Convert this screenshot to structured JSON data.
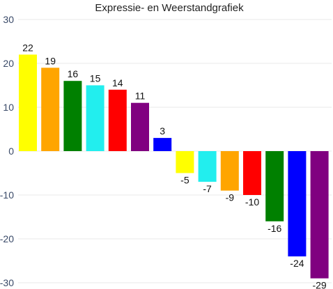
{
  "chart_data": {
    "type": "bar",
    "title": "Expressie- en Weerstandgrafiek",
    "xlabel": "",
    "ylabel": "",
    "ylim": [
      -30,
      30
    ],
    "yticks": [
      30,
      20,
      10,
      0,
      -10,
      -20,
      -30
    ],
    "grid": true,
    "legend": "none",
    "values": [
      22,
      19,
      16,
      15,
      14,
      11,
      3,
      -5,
      -7,
      -9,
      -10,
      -16,
      -24,
      -29
    ],
    "colors": [
      "#ffff00",
      "#ffa500",
      "#008000",
      "#22eeee",
      "#ff0000",
      "#800080",
      "#0000ff",
      "#ffff00",
      "#22eeee",
      "#ffa500",
      "#ff0000",
      "#008000",
      "#0000ff",
      "#800080"
    ],
    "data_labels": [
      "22",
      "19",
      "16",
      "15",
      "14",
      "11",
      "3",
      "-5",
      "-7",
      "-9",
      "-10",
      "-16",
      "-24",
      "-29"
    ]
  }
}
